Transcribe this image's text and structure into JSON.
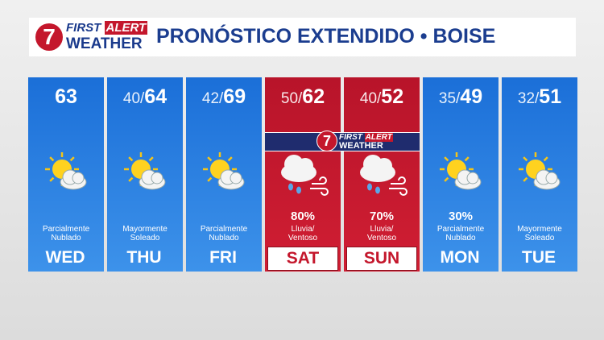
{
  "header": {
    "logo": {
      "number": "7",
      "first": "FIRST",
      "alert": "ALERT",
      "weather": "WEATHER"
    },
    "title": "PRONÓSTICO EXTENDIDO • BOISE"
  },
  "alert_badge": {
    "number": "7",
    "first": "FIRST",
    "alert": "ALERT",
    "weather": "WEATHER"
  },
  "temp_separator": "/",
  "days": [
    {
      "day": "WED",
      "low": null,
      "high": 63,
      "precip": null,
      "condition": [
        "Parcialmente",
        "Nublado"
      ],
      "first_alert": false
    },
    {
      "day": "THU",
      "low": 40,
      "high": 64,
      "precip": null,
      "condition": [
        "Mayormente",
        "Soleado"
      ],
      "first_alert": false
    },
    {
      "day": "FRI",
      "low": 42,
      "high": 69,
      "precip": null,
      "condition": [
        "Parcialmente",
        "Nublado"
      ],
      "first_alert": false
    },
    {
      "day": "SAT",
      "low": 50,
      "high": 62,
      "precip": "80%",
      "condition": [
        "Lluvia/",
        "Ventoso"
      ],
      "first_alert": true
    },
    {
      "day": "SUN",
      "low": 40,
      "high": 52,
      "precip": "70%",
      "condition": [
        "Lluvia/",
        "Ventoso"
      ],
      "first_alert": true
    },
    {
      "day": "MON",
      "low": 35,
      "high": 49,
      "precip": "30%",
      "condition": [
        "Parcialmente",
        "Nublado"
      ],
      "first_alert": false
    },
    {
      "day": "TUE",
      "low": 32,
      "high": 51,
      "precip": null,
      "condition": [
        "Mayormente",
        "Soleado"
      ],
      "first_alert": false
    }
  ]
}
